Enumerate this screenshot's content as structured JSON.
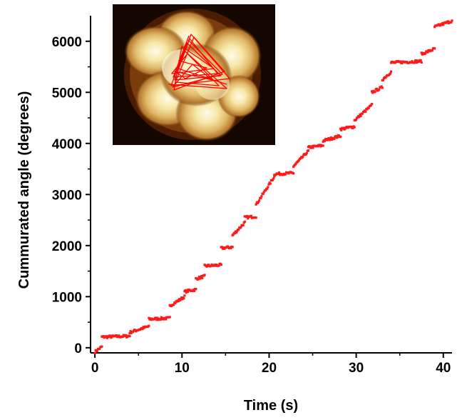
{
  "chart_data": {
    "type": "scatter",
    "xlabel": "Time (s)",
    "ylabel": "Cummurated angle (degrees)",
    "xlim": [
      -0.5,
      41
    ],
    "ylim": [
      -100,
      6500
    ],
    "xticks": [
      0,
      10,
      20,
      30,
      40
    ],
    "yticks": [
      0,
      1000,
      2000,
      3000,
      4000,
      5000,
      6000
    ],
    "marker_color": "#ff1a1a",
    "grid": false,
    "inset": {
      "type": "heatmap",
      "colormap": "afmhot",
      "overlay_color": "#ff0000",
      "overlay": "triangular trajectory"
    },
    "segments": [
      {
        "x": [
          0.0,
          0.8
        ],
        "y": [
          -80,
          20
        ]
      },
      {
        "x": [
          0.8,
          4.0
        ],
        "y": [
          210,
          230
        ]
      },
      {
        "x": [
          4.0,
          6.2
        ],
        "y": [
          300,
          420
        ]
      },
      {
        "x": [
          6.2,
          8.6
        ],
        "y": [
          560,
          580
        ]
      },
      {
        "x": [
          8.6,
          10.3
        ],
        "y": [
          820,
          1000
        ]
      },
      {
        "x": [
          10.3,
          11.6
        ],
        "y": [
          1100,
          1140
        ]
      },
      {
        "x": [
          11.6,
          12.6
        ],
        "y": [
          1350,
          1400
        ]
      },
      {
        "x": [
          12.6,
          14.5
        ],
        "y": [
          1600,
          1620
        ]
      },
      {
        "x": [
          14.5,
          15.8
        ],
        "y": [
          1950,
          1970
        ]
      },
      {
        "x": [
          15.8,
          17.2
        ],
        "y": [
          2200,
          2450
        ]
      },
      {
        "x": [
          17.2,
          18.5
        ],
        "y": [
          2550,
          2570
        ]
      },
      {
        "x": [
          18.5,
          20.6
        ],
        "y": [
          2800,
          3350
        ]
      },
      {
        "x": [
          20.6,
          22.8
        ],
        "y": [
          3400,
          3420
        ]
      },
      {
        "x": [
          22.8,
          24.5
        ],
        "y": [
          3550,
          3850
        ]
      },
      {
        "x": [
          24.5,
          26.2
        ],
        "y": [
          3920,
          3960
        ]
      },
      {
        "x": [
          26.2,
          28.2
        ],
        "y": [
          4050,
          4150
        ]
      },
      {
        "x": [
          28.2,
          29.8
        ],
        "y": [
          4280,
          4330
        ]
      },
      {
        "x": [
          29.8,
          31.8
        ],
        "y": [
          4450,
          4750
        ]
      },
      {
        "x": [
          31.8,
          33.0
        ],
        "y": [
          5000,
          5100
        ]
      },
      {
        "x": [
          33.0,
          34.0
        ],
        "y": [
          5250,
          5400
        ]
      },
      {
        "x": [
          34.0,
          37.5
        ],
        "y": [
          5580,
          5610
        ]
      },
      {
        "x": [
          37.5,
          39.0
        ],
        "y": [
          5750,
          5850
        ]
      },
      {
        "x": [
          39.0,
          41.0
        ],
        "y": [
          6280,
          6400
        ]
      }
    ]
  }
}
